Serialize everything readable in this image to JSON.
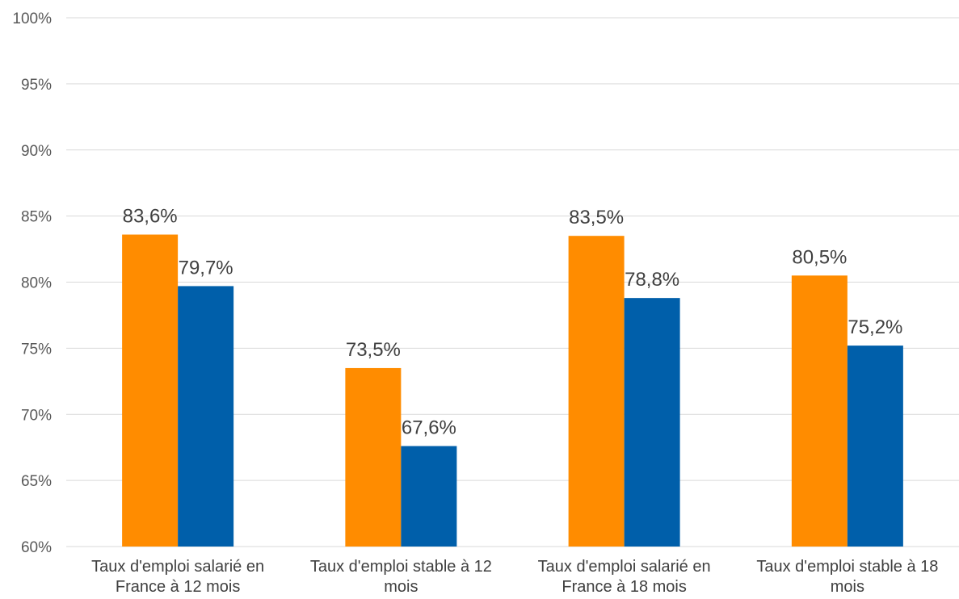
{
  "chart_data": {
    "type": "bar",
    "categories": [
      [
        "Taux d'emploi salarié en",
        "France à 12 mois"
      ],
      [
        "Taux d'emploi stable à 12",
        "mois"
      ],
      [
        "Taux d'emploi salarié en",
        "France à 18 mois"
      ],
      [
        "Taux d'emploi stable à 18",
        "mois"
      ]
    ],
    "series": [
      {
        "color": "#FF8C00",
        "values": [
          83.6,
          73.5,
          83.5,
          80.5
        ],
        "labels": [
          "83,6%",
          "73,5%",
          "83,5%",
          "80,5%"
        ]
      },
      {
        "color": "#005FAA",
        "values": [
          79.7,
          67.6,
          78.8,
          75.2
        ],
        "labels": [
          "79,7%",
          "67,6%",
          "78,8%",
          "75,2%"
        ]
      }
    ],
    "ylim": [
      60,
      100
    ],
    "yticks": [
      "60%",
      "65%",
      "70%",
      "75%",
      "80%",
      "85%",
      "90%",
      "95%",
      "100%"
    ],
    "grid": true,
    "legend": "none"
  }
}
